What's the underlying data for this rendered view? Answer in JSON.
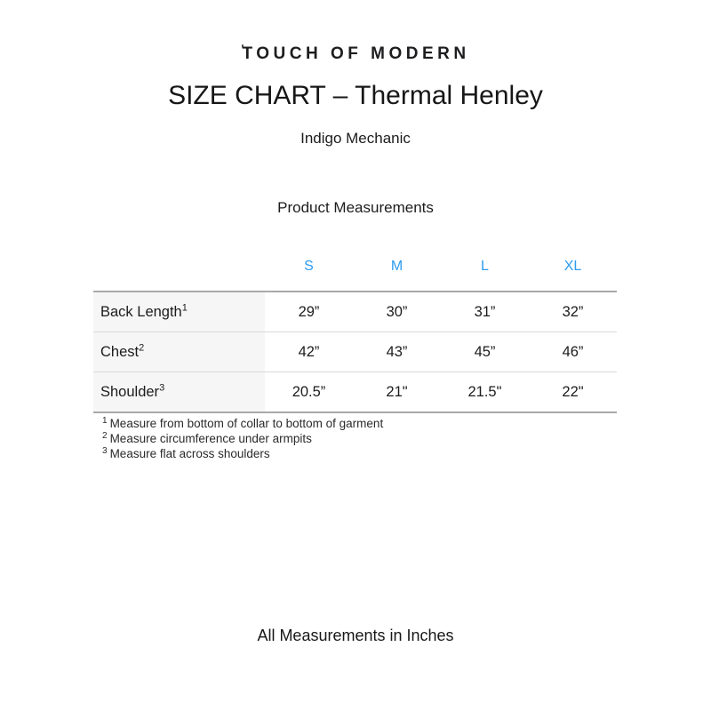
{
  "brand": {
    "logo_tick": "ʹ",
    "logo_text": "TOUCH OF MODERN"
  },
  "header": {
    "title": "SIZE CHART – Thermal Henley",
    "subtitle": "Indigo Mechanic"
  },
  "section": {
    "heading": "Product Measurements"
  },
  "size_chart": {
    "accent_color": "#2d9cf0",
    "columns": [
      "S",
      "M",
      "L",
      "XL"
    ],
    "rows": [
      {
        "label": "Back Length",
        "footnote_ref": "1",
        "values": [
          "29”",
          "30”",
          "31”",
          "32”"
        ]
      },
      {
        "label": "Chest",
        "footnote_ref": "2",
        "values": [
          "42”",
          "43”",
          "45”",
          "46”"
        ]
      },
      {
        "label": "Shoulder",
        "footnote_ref": "3",
        "values": [
          "20.5”",
          "21\"",
          "21.5\"",
          "22\""
        ]
      }
    ]
  },
  "footnotes": [
    {
      "ref": "1",
      "text": "Measure from bottom of collar to bottom of garment"
    },
    {
      "ref": "2",
      "text": "Measure circumference under armpits"
    },
    {
      "ref": "3",
      "text": "Measure flat across shoulders"
    }
  ],
  "footer": {
    "note": "All Measurements in Inches"
  }
}
